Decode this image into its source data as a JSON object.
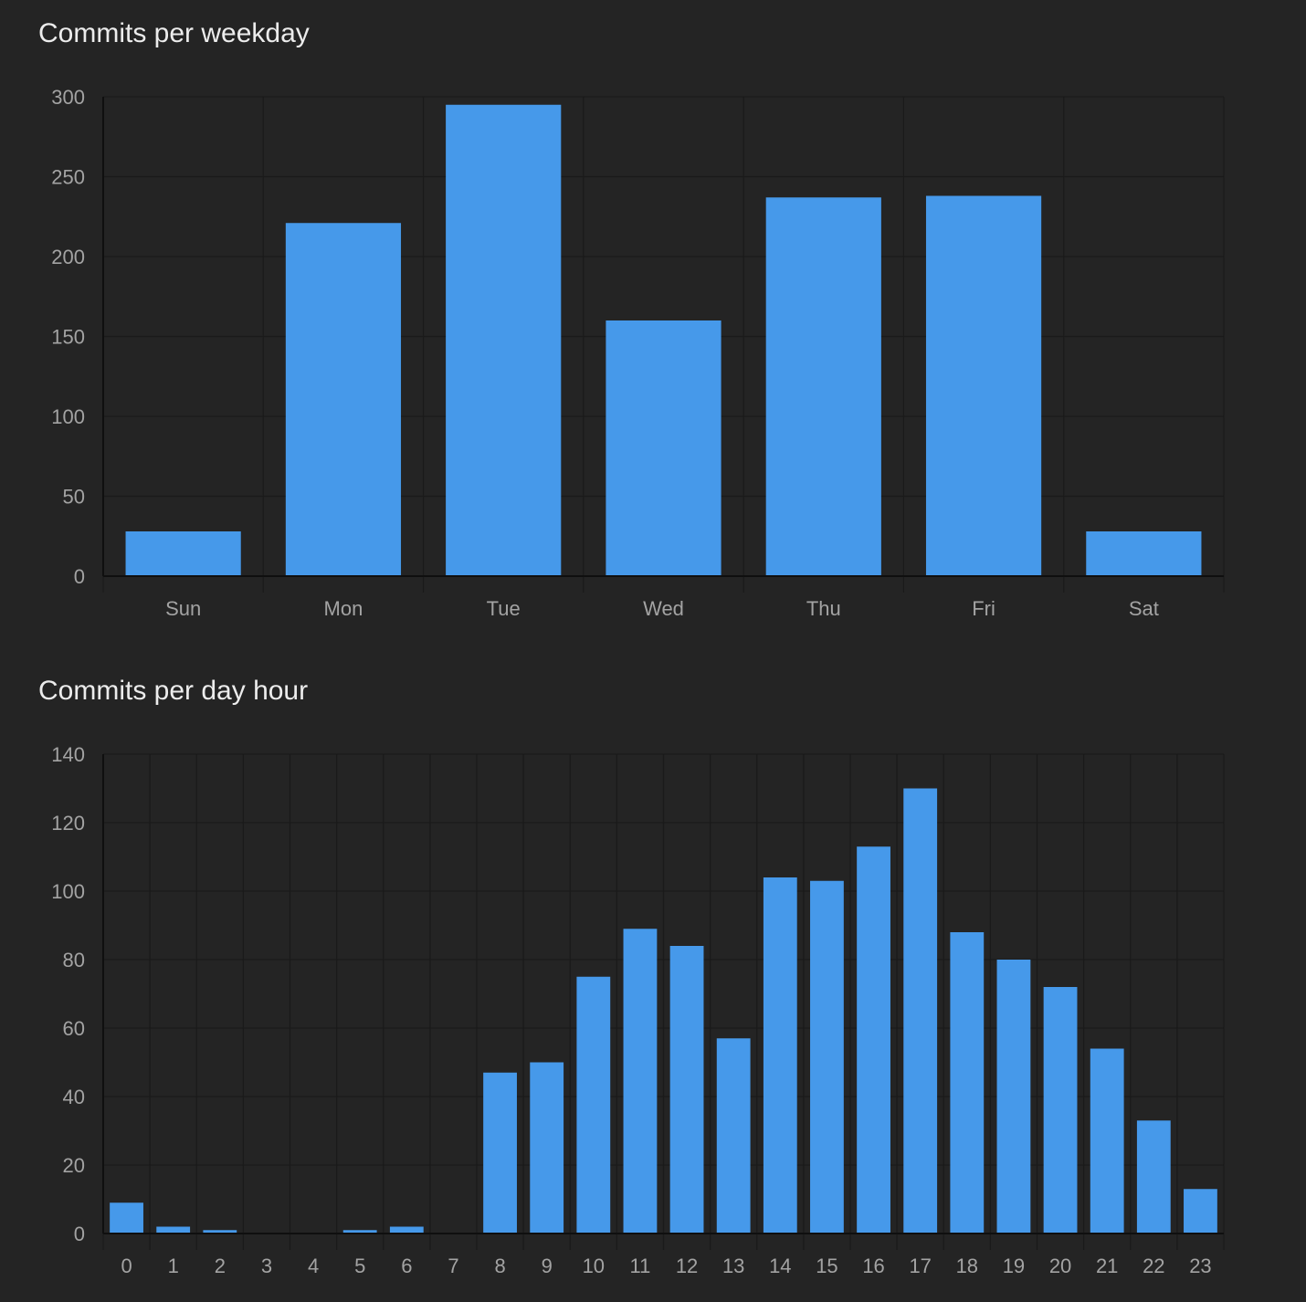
{
  "charts": [
    {
      "title": "Commits per weekday"
    },
    {
      "title": "Commits per day hour"
    }
  ],
  "colors": {
    "background": "#242424",
    "bar": "#4699ea",
    "grid": "#1a1a1a",
    "axis": "#0f0f0f",
    "tick_text": "#a3a3a3",
    "title_text": "#ececec"
  },
  "chart_data": [
    {
      "type": "bar",
      "title": "Commits per weekday",
      "categories": [
        "Sun",
        "Mon",
        "Tue",
        "Wed",
        "Thu",
        "Fri",
        "Sat"
      ],
      "values": [
        28,
        221,
        295,
        160,
        237,
        238,
        28
      ],
      "xlabel": "",
      "ylabel": "",
      "ylim": [
        0,
        300
      ],
      "yticks": [
        0,
        50,
        100,
        150,
        200,
        250,
        300
      ],
      "grid": true,
      "legend": "none"
    },
    {
      "type": "bar",
      "title": "Commits per day hour",
      "categories": [
        "0",
        "1",
        "2",
        "3",
        "4",
        "5",
        "6",
        "7",
        "8",
        "9",
        "10",
        "11",
        "12",
        "13",
        "14",
        "15",
        "16",
        "17",
        "18",
        "19",
        "20",
        "21",
        "22",
        "23"
      ],
      "values": [
        9,
        2,
        1,
        0,
        0,
        1,
        2,
        0,
        47,
        50,
        75,
        89,
        84,
        57,
        104,
        103,
        113,
        130,
        88,
        80,
        72,
        54,
        33,
        13
      ],
      "xlabel": "",
      "ylabel": "",
      "ylim": [
        0,
        140
      ],
      "yticks": [
        0,
        20,
        40,
        60,
        80,
        100,
        120,
        140
      ],
      "grid": true,
      "legend": "none"
    }
  ]
}
